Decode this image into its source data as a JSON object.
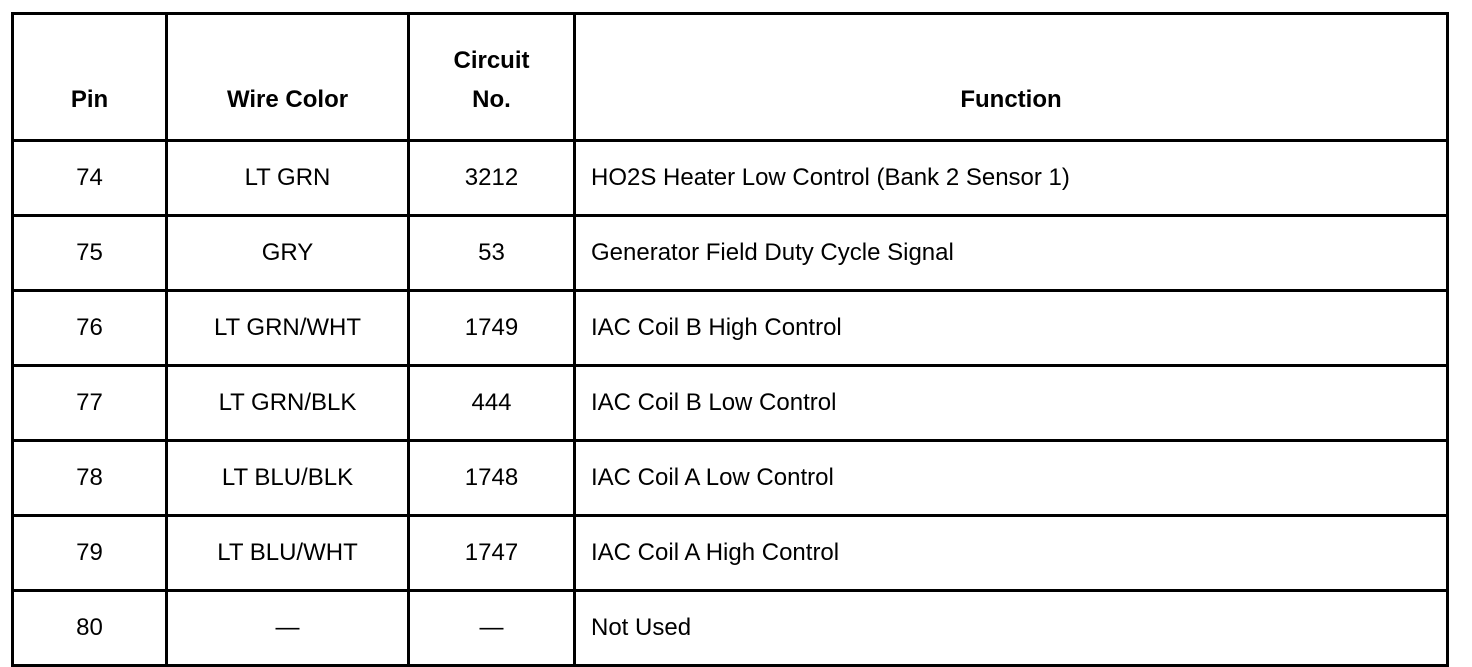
{
  "headers": {
    "pin": "Pin",
    "wire_color": "Wire Color",
    "circuit_line1": "Circuit",
    "circuit_line2": "No.",
    "function": "Function"
  },
  "rows": [
    {
      "pin": "74",
      "wire_color": "LT GRN",
      "circuit": "3212",
      "function": "HO2S Heater Low Control (Bank 2 Sensor 1)"
    },
    {
      "pin": "75",
      "wire_color": "GRY",
      "circuit": "53",
      "function": "Generator Field Duty Cycle Signal"
    },
    {
      "pin": "76",
      "wire_color": "LT GRN/WHT",
      "circuit": "1749",
      "function": "IAC Coil B High Control"
    },
    {
      "pin": "77",
      "wire_color": "LT GRN/BLK",
      "circuit": "444",
      "function": "IAC Coil B Low Control"
    },
    {
      "pin": "78",
      "wire_color": "LT BLU/BLK",
      "circuit": "1748",
      "function": "IAC Coil A Low Control"
    },
    {
      "pin": "79",
      "wire_color": "LT BLU/WHT",
      "circuit": "1747",
      "function": "IAC Coil A High Control"
    },
    {
      "pin": "80",
      "wire_color": "—",
      "circuit": "—",
      "function": "Not Used"
    }
  ]
}
